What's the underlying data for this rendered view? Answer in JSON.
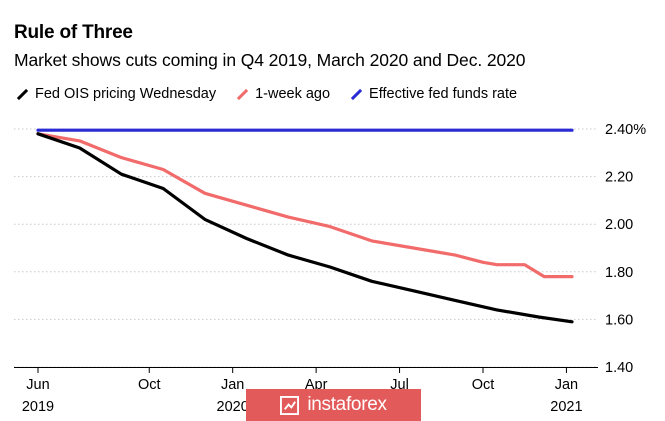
{
  "chart_data": {
    "type": "line",
    "title": "Rule of Three",
    "subtitle": "Market shows cuts coming in Q4 2019, March 2020 and Dec. 2020",
    "ylim": [
      1.4,
      2.4
    ],
    "yticks": [
      "2.40%",
      "2.20",
      "2.00",
      "1.80",
      "1.60",
      "1.40"
    ],
    "ytick_values": [
      2.4,
      2.2,
      2.0,
      1.8,
      1.6,
      1.4
    ],
    "xlim": [
      0,
      19.2
    ],
    "xticks": [
      {
        "x": 0,
        "line1": "Jun",
        "line2": "2019"
      },
      {
        "x": 4,
        "line1": "Oct",
        "line2": ""
      },
      {
        "x": 7,
        "line1": "Jan",
        "line2": "2020"
      },
      {
        "x": 10,
        "line1": "Apr",
        "line2": ""
      },
      {
        "x": 13,
        "line1": "Jul",
        "line2": ""
      },
      {
        "x": 16,
        "line1": "Oct",
        "line2": ""
      },
      {
        "x": 19,
        "line1": "Jan",
        "line2": "2021"
      }
    ],
    "grid": "horizontal",
    "legend_position": "top-left",
    "series": [
      {
        "name": "Fed OIS pricing Wednesday",
        "color": "#000000",
        "x": [
          0,
          1.5,
          3,
          4.5,
          6,
          7.5,
          9,
          10.5,
          12,
          13.5,
          15,
          16.5,
          18,
          19.2
        ],
        "values": [
          2.38,
          2.32,
          2.21,
          2.15,
          2.02,
          1.94,
          1.87,
          1.82,
          1.76,
          1.72,
          1.68,
          1.64,
          1.61,
          1.59
        ]
      },
      {
        "name": "1-week ago",
        "color": "#f26b6b",
        "x": [
          0,
          1.5,
          3,
          4.5,
          6,
          7.5,
          9,
          10.5,
          12,
          13.5,
          15,
          16,
          16.5,
          17.5,
          18.2,
          19.2
        ],
        "values": [
          2.38,
          2.35,
          2.28,
          2.23,
          2.13,
          2.08,
          2.03,
          1.99,
          1.93,
          1.9,
          1.87,
          1.84,
          1.83,
          1.83,
          1.78,
          1.78
        ]
      },
      {
        "name": "Effective fed funds rate",
        "color": "#2b2bd6",
        "x": [
          0,
          19.2
        ],
        "values": [
          2.395,
          2.395
        ]
      }
    ]
  },
  "watermark": {
    "text": "instaforex"
  }
}
